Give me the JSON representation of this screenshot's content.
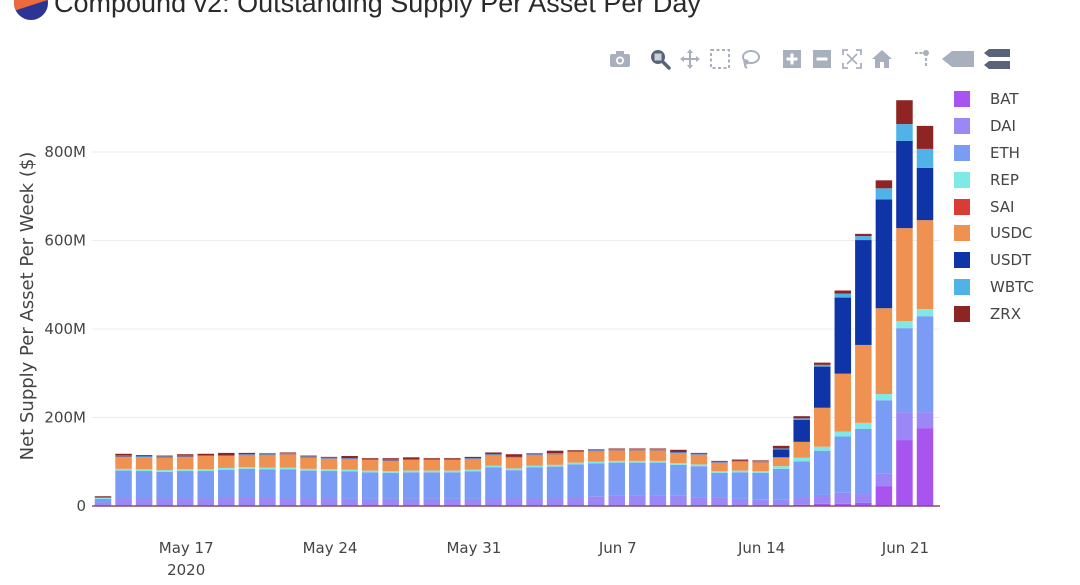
{
  "header": {
    "title": "Compound v2: Outstanding Supply Per Asset Per Day",
    "logo_icon": "compound-logo-icon"
  },
  "modebar": [
    {
      "name": "camera-icon",
      "label": "Download plot as a png"
    },
    {
      "name": "zoom-icon",
      "label": "Zoom"
    },
    {
      "name": "pan-icon",
      "label": "Pan"
    },
    {
      "name": "box-select-icon",
      "label": "Box Select"
    },
    {
      "name": "lasso-select-icon",
      "label": "Lasso Select"
    },
    {
      "name": "zoom-in-icon",
      "label": "Zoom in"
    },
    {
      "name": "zoom-out-icon",
      "label": "Zoom out"
    },
    {
      "name": "autoscale-icon",
      "label": "Autoscale"
    },
    {
      "name": "reset-axes-icon",
      "label": "Reset axes"
    },
    {
      "name": "spike-lines-icon",
      "label": "Toggle Spike Lines"
    },
    {
      "name": "hover-closest-icon",
      "label": "Show closest data on hover"
    },
    {
      "name": "hover-compare-icon",
      "label": "Compare data on hover"
    }
  ],
  "chart_data": {
    "type": "bar",
    "stacked": true,
    "title": "Compound v2: Outstanding Supply Per Asset Per Day",
    "xlabel": "",
    "ylabel": "Net Supply Per Asset Per Week ($)",
    "ylim": [
      0,
      920
    ],
    "y_unit": "M",
    "yticks": [
      0,
      200,
      400,
      600,
      800
    ],
    "ytick_labels": [
      "0",
      "200M",
      "400M",
      "600M",
      "800M"
    ],
    "xtick_labels": [
      {
        "label": "May 17",
        "sub": "2020",
        "index": 4
      },
      {
        "label": "May 24",
        "sub": "",
        "index": 11
      },
      {
        "label": "May 31",
        "sub": "",
        "index": 18
      },
      {
        "label": "Jun 7",
        "sub": "",
        "index": 25
      },
      {
        "label": "Jun 14",
        "sub": "",
        "index": 32
      },
      {
        "label": "Jun 21",
        "sub": "",
        "index": 39
      }
    ],
    "grid": true,
    "legend_position": "right",
    "categories": [
      "2020-05-13",
      "2020-05-14",
      "2020-05-15",
      "2020-05-16",
      "2020-05-17",
      "2020-05-18",
      "2020-05-19",
      "2020-05-20",
      "2020-05-21",
      "2020-05-22",
      "2020-05-23",
      "2020-05-24",
      "2020-05-25",
      "2020-05-26",
      "2020-05-27",
      "2020-05-28",
      "2020-05-29",
      "2020-05-30",
      "2020-05-31",
      "2020-06-01",
      "2020-06-02",
      "2020-06-03",
      "2020-06-04",
      "2020-06-05",
      "2020-06-06",
      "2020-06-07",
      "2020-06-08",
      "2020-06-09",
      "2020-06-10",
      "2020-06-11",
      "2020-06-12",
      "2020-06-13",
      "2020-06-14",
      "2020-06-15",
      "2020-06-16",
      "2020-06-17",
      "2020-06-18",
      "2020-06-19",
      "2020-06-20",
      "2020-06-21",
      "2020-06-22"
    ],
    "series": [
      {
        "name": "BAT",
        "color": "#a855f0",
        "values": [
          2,
          2,
          2,
          2,
          2,
          2,
          2,
          2,
          2,
          2,
          2,
          2,
          2,
          2,
          2,
          2,
          2,
          2,
          2,
          2,
          2,
          2,
          2,
          2,
          2,
          2,
          2,
          2,
          2,
          2,
          2,
          2,
          2,
          2,
          3,
          5,
          5,
          7,
          45,
          149,
          176
        ]
      },
      {
        "name": "DAI",
        "color": "#9b87f5",
        "values": [
          6,
          15,
          15,
          15,
          15,
          15,
          16,
          16,
          16,
          15,
          15,
          15,
          14,
          14,
          14,
          14,
          14,
          14,
          14,
          15,
          15,
          15,
          15,
          16,
          20,
          22,
          22,
          22,
          21,
          18,
          18,
          14,
          12,
          12,
          15,
          20,
          25,
          20,
          29,
          63,
          36
        ]
      },
      {
        "name": "ETH",
        "color": "#7b9cf5",
        "values": [
          8,
          63,
          62,
          60,
          62,
          62,
          64,
          66,
          65,
          66,
          63,
          62,
          62,
          60,
          59,
          60,
          60,
          60,
          62,
          70,
          64,
          70,
          72,
          76,
          74,
          74,
          74,
          74,
          70,
          70,
          55,
          60,
          61,
          70,
          83,
          100,
          127,
          147,
          165,
          190,
          217
        ]
      },
      {
        "name": "REP",
        "color": "#7fe9e6",
        "values": [
          3,
          4,
          4,
          4,
          4,
          4,
          4,
          4,
          4,
          4,
          4,
          4,
          4,
          4,
          4,
          4,
          4,
          4,
          4,
          4,
          4,
          4,
          4,
          4,
          4,
          4,
          4,
          4,
          4,
          4,
          4,
          4,
          4,
          6,
          8,
          9,
          11,
          14,
          14,
          16,
          16
        ]
      },
      {
        "name": "SAI",
        "color": "#d93c34",
        "values": [
          0,
          0,
          0,
          0,
          0,
          0,
          0,
          0,
          0,
          0,
          0,
          0,
          0,
          0,
          0,
          0,
          0,
          0,
          0,
          0,
          0,
          0,
          0,
          0,
          0,
          0,
          0,
          0,
          0,
          0,
          0,
          0,
          0,
          0,
          0,
          0,
          0,
          0,
          0,
          0,
          0
        ]
      },
      {
        "name": "USDC",
        "color": "#ef9151",
        "values": [
          0,
          28,
          28,
          29,
          29,
          30,
          27,
          27,
          28,
          30,
          26,
          24,
          24,
          24,
          24,
          24,
          24,
          24,
          24,
          24,
          24,
          24,
          24,
          24,
          24,
          24,
          24,
          24,
          23,
          22,
          19,
          20,
          20,
          20,
          36,
          88,
          131,
          176,
          194,
          210,
          201
        ]
      },
      {
        "name": "USDT",
        "color": "#0f34a8",
        "values": [
          0,
          1,
          1,
          1,
          1,
          1,
          1,
          1,
          1,
          1,
          1,
          1,
          1,
          1,
          1,
          1,
          1,
          1,
          1,
          1,
          1,
          1,
          1,
          1,
          1,
          1,
          1,
          1,
          1,
          1,
          1,
          1,
          1,
          18,
          50,
          93,
          172,
          237,
          246,
          197,
          118
        ]
      },
      {
        "name": "WBTC",
        "color": "#4fb3e8",
        "values": [
          0,
          1,
          1,
          1,
          1,
          1,
          1,
          1,
          1,
          1,
          1,
          1,
          1,
          1,
          1,
          1,
          1,
          1,
          1,
          1,
          1,
          1,
          1,
          1,
          1,
          1,
          1,
          1,
          1,
          1,
          1,
          1,
          1,
          2,
          3,
          4,
          9,
          9,
          25,
          38,
          43
        ]
      },
      {
        "name": "ZRX",
        "color": "#8f2424",
        "values": [
          3,
          4,
          2,
          2,
          3,
          3,
          5,
          3,
          2,
          2,
          2,
          2,
          5,
          2,
          3,
          4,
          2,
          2,
          3,
          4,
          6,
          2,
          6,
          2,
          2,
          2,
          2,
          2,
          5,
          2,
          2,
          3,
          2,
          6,
          5,
          5,
          7,
          5,
          18,
          54,
          52
        ]
      }
    ]
  }
}
